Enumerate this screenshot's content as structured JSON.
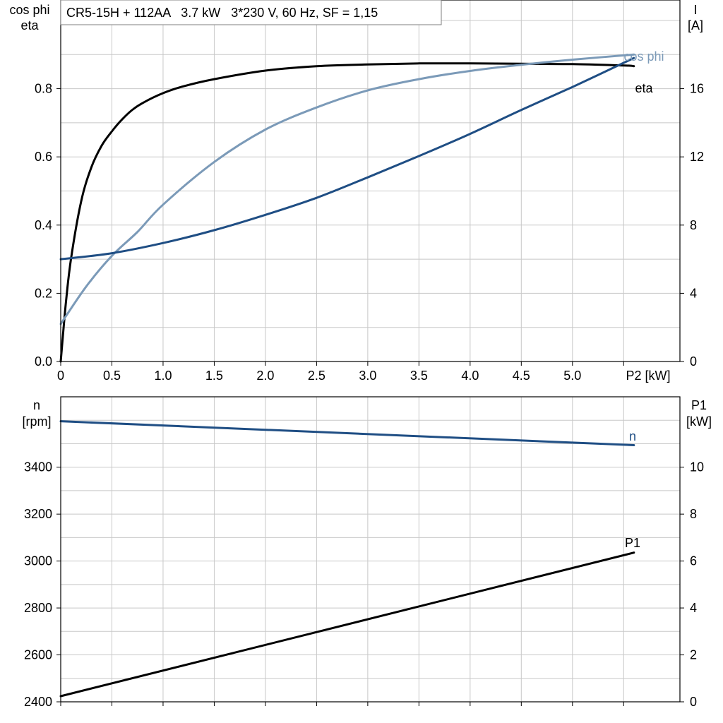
{
  "chart_data": [
    {
      "type": "line",
      "title": "CR5-15H + 112AA   3.7 kW   3*230 V, 60 Hz, SF = 1,15",
      "x_axis": {
        "label": "P2 [kW]",
        "range": [
          0,
          6.05
        ],
        "ticks": [
          0,
          0.5,
          1.0,
          1.5,
          2.0,
          2.5,
          3.0,
          3.5,
          4.0,
          4.5,
          5.0
        ],
        "tick_labels": [
          "0",
          "0.5",
          "1.0",
          "1.5",
          "2.0",
          "2.5",
          "3.0",
          "3.5",
          "4.0",
          "4.5",
          "5.0"
        ]
      },
      "y_left": {
        "label_line1": "cos phi",
        "label_line2": "eta",
        "range": [
          0,
          1.06
        ],
        "ticks": [
          0.0,
          0.2,
          0.4,
          0.6,
          0.8
        ],
        "tick_labels": [
          "0.0",
          "0.2",
          "0.4",
          "0.6",
          "0.8"
        ]
      },
      "y_right": {
        "label_line1": "I",
        "label_line2": "[A]",
        "range": [
          0,
          21.2
        ],
        "ticks": [
          0,
          4,
          8,
          12,
          16
        ],
        "tick_labels": [
          "0",
          "4",
          "8",
          "12",
          "16"
        ]
      },
      "grid": true,
      "series": [
        {
          "name": "eta",
          "axis": "left",
          "color": "#000000",
          "x": [
            0,
            0.05,
            0.1,
            0.2,
            0.3,
            0.4,
            0.5,
            0.6,
            0.7,
            0.8,
            1.0,
            1.2,
            1.5,
            2.0,
            2.5,
            3.0,
            3.5,
            4.0,
            4.5,
            5.0,
            5.5,
            5.6
          ],
          "values": [
            0,
            0.17,
            0.3,
            0.47,
            0.57,
            0.633,
            0.675,
            0.71,
            0.738,
            0.758,
            0.787,
            0.807,
            0.828,
            0.853,
            0.866,
            0.871,
            0.874,
            0.874,
            0.873,
            0.872,
            0.868,
            0.866
          ]
        },
        {
          "name": "cos phi",
          "axis": "left",
          "color": "#7b9ab8",
          "x": [
            0,
            0.25,
            0.5,
            0.75,
            1.0,
            1.5,
            2.0,
            2.5,
            3.0,
            3.5,
            4.0,
            4.5,
            5.0,
            5.6
          ],
          "values": [
            0.11,
            0.22,
            0.31,
            0.38,
            0.46,
            0.585,
            0.68,
            0.745,
            0.795,
            0.828,
            0.852,
            0.87,
            0.885,
            0.9
          ]
        },
        {
          "name": "I",
          "axis": "right",
          "color": "#1f4e84",
          "x": [
            0,
            0.5,
            1.0,
            1.5,
            2.0,
            2.5,
            3.0,
            3.5,
            4.0,
            4.5,
            5.0,
            5.6
          ],
          "values": [
            6.0,
            6.35,
            6.95,
            7.7,
            8.6,
            9.6,
            10.8,
            12.05,
            13.35,
            14.75,
            16.1,
            17.8
          ]
        }
      ],
      "annotations": [
        "cos phi",
        "eta"
      ]
    },
    {
      "type": "line",
      "x_axis": {
        "range": [
          0,
          6.05
        ],
        "ticks": [
          0,
          0.5,
          1.0,
          1.5,
          2.0,
          2.5,
          3.0,
          3.5,
          4.0,
          4.5,
          5.0
        ]
      },
      "y_left": {
        "label_line1": "n",
        "label_line2": "[rpm]",
        "range": [
          2400,
          3700
        ],
        "ticks": [
          2400,
          2600,
          2800,
          3000,
          3200,
          3400
        ],
        "tick_labels": [
          "2400",
          "2600",
          "2800",
          "3000",
          "3200",
          "3400"
        ]
      },
      "y_right": {
        "label_line1": "P1",
        "label_line2": "[kW]",
        "range": [
          0,
          13
        ],
        "ticks": [
          0,
          2,
          4,
          6,
          8,
          10
        ],
        "tick_labels": [
          "0",
          "2",
          "4",
          "6",
          "8",
          "10"
        ]
      },
      "grid": true,
      "series": [
        {
          "name": "n",
          "axis": "left",
          "color": "#1f4e84",
          "x": [
            0,
            5.6
          ],
          "values": [
            3596,
            3494
          ]
        },
        {
          "name": "P1",
          "axis": "right",
          "color": "#000000",
          "x": [
            0,
            5.6
          ],
          "values": [
            0.24,
            6.36
          ]
        }
      ],
      "annotations": [
        "n",
        "P1"
      ]
    }
  ]
}
